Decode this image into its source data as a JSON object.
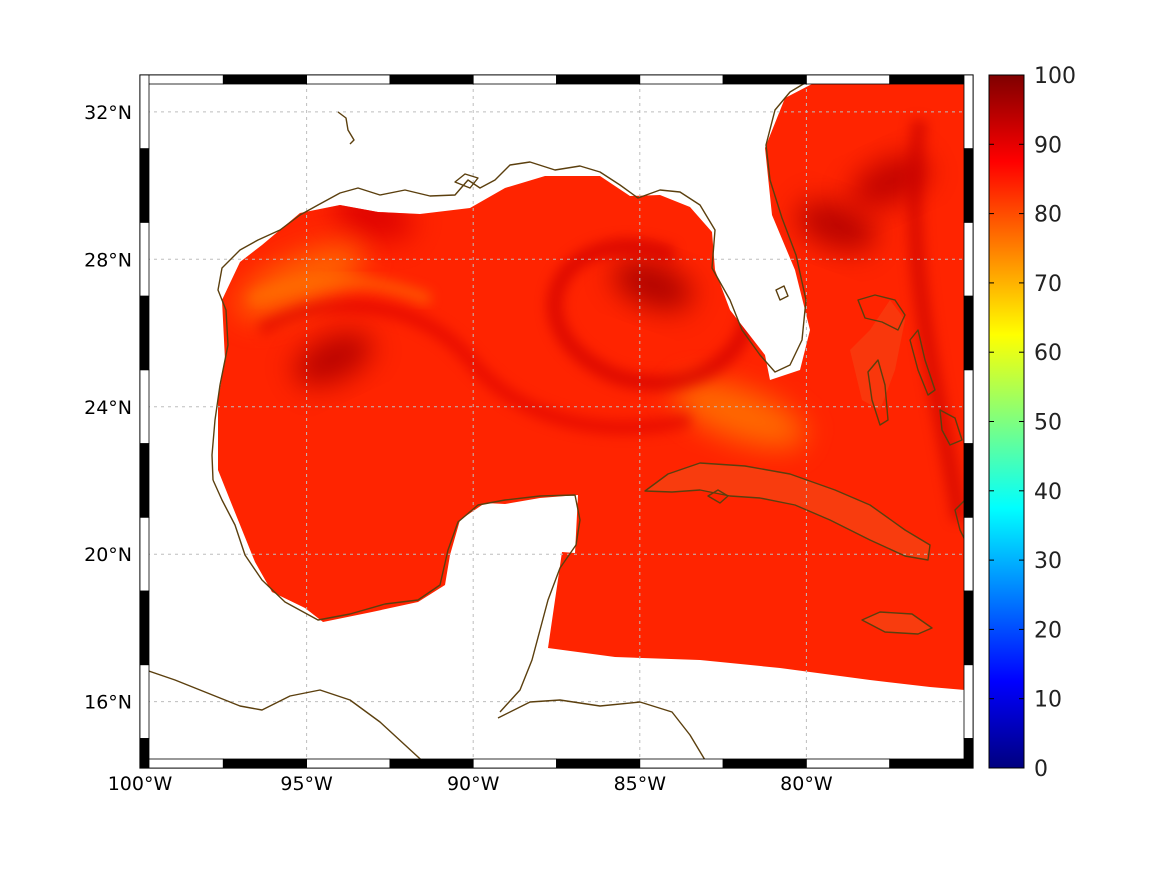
{
  "map": {
    "lon_range": [
      -100,
      -75
    ],
    "lat_range": [
      14.2,
      33
    ],
    "lon_ticks": [
      {
        "value": -100,
        "label": "100°W"
      },
      {
        "value": -95,
        "label": "95°W"
      },
      {
        "value": -90,
        "label": "90°W"
      },
      {
        "value": -85,
        "label": "85°W"
      },
      {
        "value": -80,
        "label": "80°W"
      }
    ],
    "lat_ticks": [
      {
        "value": 16,
        "label": "16°N"
      },
      {
        "value": 20,
        "label": "20°N"
      },
      {
        "value": 24,
        "label": "24°N"
      },
      {
        "value": 28,
        "label": "28°N"
      },
      {
        "value": 32,
        "label": "32°N"
      }
    ],
    "grid": true,
    "frame": "checkered black-white border",
    "coastline_color": "#5b3f0e",
    "colormap": "jet"
  },
  "colorbar": {
    "range": [
      0,
      100
    ],
    "ticks": [
      {
        "value": 100,
        "label": "100"
      },
      {
        "value": 90,
        "label": "90"
      },
      {
        "value": 80,
        "label": "80"
      },
      {
        "value": 70,
        "label": "70"
      },
      {
        "value": 60,
        "label": "60"
      },
      {
        "value": 50,
        "label": "50"
      },
      {
        "value": 40,
        "label": "40"
      },
      {
        "value": 30,
        "label": "30"
      },
      {
        "value": 20,
        "label": "20"
      },
      {
        "value": 10,
        "label": "10"
      },
      {
        "value": 0,
        "label": "0"
      }
    ],
    "stops": [
      "#00007f",
      "#0000ff",
      "#007fff",
      "#00ffff",
      "#7fff7f",
      "#ffff00",
      "#ff7f00",
      "#ff0000",
      "#7f0000"
    ]
  },
  "field": {
    "typical_value": 84,
    "fill_color": "#f03a0c",
    "features": [
      {
        "name": "loop-current-eddy",
        "lon": -84.6,
        "lat": 27.3,
        "value": 96
      },
      {
        "name": "western-gulf-high",
        "lon": -94.2,
        "lat": 25.3,
        "value": 95
      },
      {
        "name": "atlantic-high-1",
        "lon": -79.1,
        "lat": 28.9,
        "value": 95
      },
      {
        "name": "atlantic-high-2",
        "lon": -77.5,
        "lat": 30.1,
        "value": 94
      },
      {
        "name": "north-gulf-band",
        "lon": -93.0,
        "lat": 29.2,
        "value": 91
      },
      {
        "name": "shelf-band-texas",
        "lon": -95.2,
        "lat": 27.4,
        "value": 76
      },
      {
        "name": "florida-straits",
        "lon": -82.0,
        "lat": 23.8,
        "value": 75
      }
    ]
  }
}
